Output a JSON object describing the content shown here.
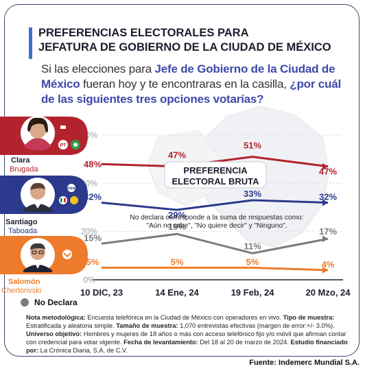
{
  "header": {
    "title_line1": "PREFERENCIAS ELECTORALES PARA",
    "title_line2": "JEFATURA DE GOBIERNO DE LA CIUDAD DE MÉXICO"
  },
  "question": {
    "p1": "Si las elecciones para ",
    "h1": "Jefe de Gobierno de la Ciudad de México",
    "p2": " fueran hoy y te encontraras en la casilla, ",
    "h2": "¿por cuál de las siguientes tres opciones votarías?"
  },
  "candidates": [
    {
      "first": "Clara",
      "last": "Brugada",
      "band_color": "#b3232d",
      "name_color": "#b3232d"
    },
    {
      "first": "Santiago",
      "last": "Taboada",
      "band_color": "#2b3a8c",
      "name_color": "#2b3a8c"
    },
    {
      "first": "Salomón",
      "last": "Chertorivski",
      "band_color": "#ee7b2b",
      "name_color": "#ee7b2b"
    }
  ],
  "box_label_1": "PREFERENCIA",
  "box_label_2": "ELECTORAL BRUTA",
  "nd_note_1": "No declara corresponde a la suma de respuestas como:",
  "nd_note_2": "\"Aún no sabe\", \"No quiere decir\" y \"Ninguno\".",
  "legend": {
    "no_declara": "No Declara"
  },
  "chart_data": {
    "type": "line",
    "categories": [
      "10 DIC, 23",
      "14 Ene, 24",
      "19 Feb, 24",
      "20 Mzo, 24"
    ],
    "y_ticks": [
      "60%",
      "40%",
      "20%",
      "0%"
    ],
    "ylim": [
      0,
      60
    ],
    "series": [
      {
        "name": "Clara Brugada",
        "color": "#b3232d",
        "values": [
          48,
          47,
          51,
          47
        ],
        "labels": [
          "48%",
          "47%",
          "51%",
          "47%"
        ]
      },
      {
        "name": "Santiago Taboada",
        "color": "#2b3a8c",
        "values": [
          32,
          29,
          33,
          32
        ],
        "labels": [
          "32%",
          "29%",
          "33%",
          "32%"
        ]
      },
      {
        "name": "No Declara",
        "color": "#7b7b7b",
        "values": [
          15,
          19,
          11,
          17
        ],
        "labels": [
          "15%",
          "19%",
          "11%",
          "17%"
        ]
      },
      {
        "name": "Salomón Chertorivski",
        "color": "#ee7b2b",
        "values": [
          5,
          5,
          5,
          4
        ],
        "labels": [
          "5%",
          "5%",
          "5%",
          "4%"
        ]
      }
    ]
  },
  "note": {
    "l1a": "Nota metodológica:",
    "l1b": " Encuesta telefónica en la Ciudad de México con operadores en vivo. ",
    "l1c": "Tipo de muestra:",
    "l1d": " Estratificada y aleatoria simple. ",
    "l1e": "Tamaño de muestra:",
    "l1f": " 1,070 entrevistas efectivas (margen de error:+/- 3.0%).",
    "l2a": "Universo objetivo:",
    "l2b": " Hombres y mujeres de 18 años o más con acceso telefónico fijo y/o móvil que afirman contar con credencial para votar vigente. ",
    "l2c": "Fecha de levantamiento:",
    "l2d": " Del 18 al 20 de marzo de 2024. ",
    "l2e": "Estudio financiado por:",
    "l2f": " La Crónica Diaria, S.A. de C.V."
  },
  "source": {
    "label": "Fuente:",
    "value": " Indemerc Mundial S.A."
  }
}
